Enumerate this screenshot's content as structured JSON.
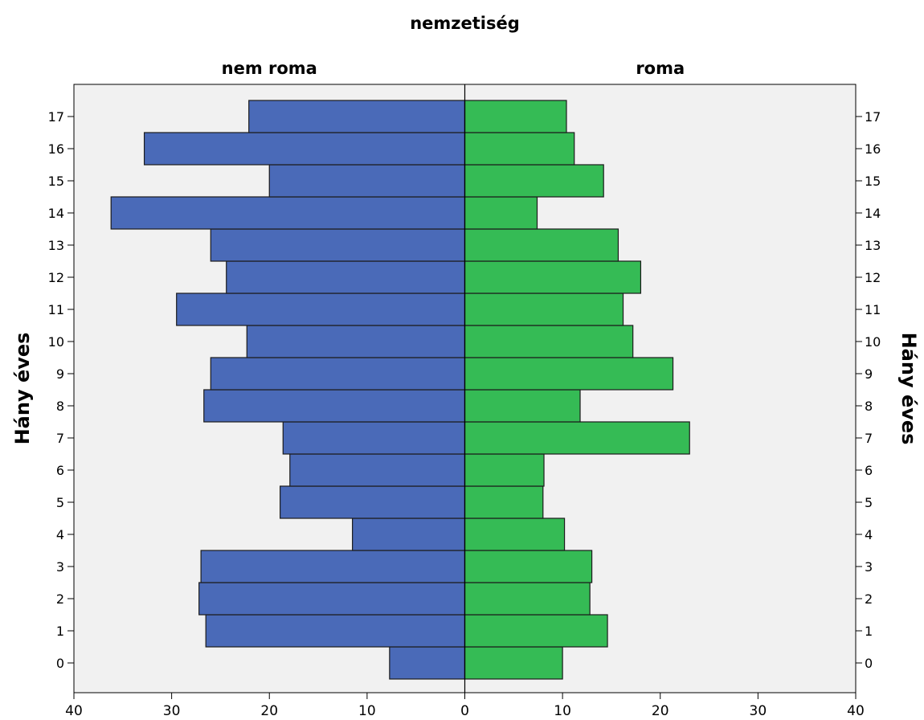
{
  "chart_data": {
    "type": "bar",
    "title": "nemzetiség",
    "ylabel": "Hány éves",
    "categories": [
      "0",
      "1",
      "2",
      "3",
      "4",
      "5",
      "6",
      "7",
      "8",
      "9",
      "10",
      "11",
      "12",
      "13",
      "14",
      "15",
      "16",
      "17"
    ],
    "series": [
      {
        "name": "nem roma",
        "color": "#4a6ab8",
        "values": [
          7.7,
          26.5,
          27.2,
          27.0,
          11.5,
          18.9,
          17.9,
          18.6,
          26.7,
          26.0,
          22.3,
          29.5,
          24.4,
          26.0,
          36.2,
          20.0,
          32.8,
          22.1
        ]
      },
      {
        "name": "roma",
        "color": "#35bb55",
        "values": [
          10.0,
          14.6,
          12.8,
          13.0,
          10.2,
          8.0,
          8.1,
          23.0,
          11.8,
          21.3,
          17.2,
          16.2,
          18.0,
          15.7,
          7.4,
          14.2,
          11.2,
          10.4
        ]
      }
    ],
    "xlim": [
      -40,
      40
    ],
    "xticks": [
      -40,
      -30,
      -20,
      -10,
      0,
      10,
      20,
      30,
      40
    ],
    "xtick_labels": [
      "40",
      "30",
      "20",
      "10",
      "0",
      "10",
      "20",
      "30",
      "40"
    ],
    "grid": false,
    "plot_background": "#f1f1f1"
  }
}
